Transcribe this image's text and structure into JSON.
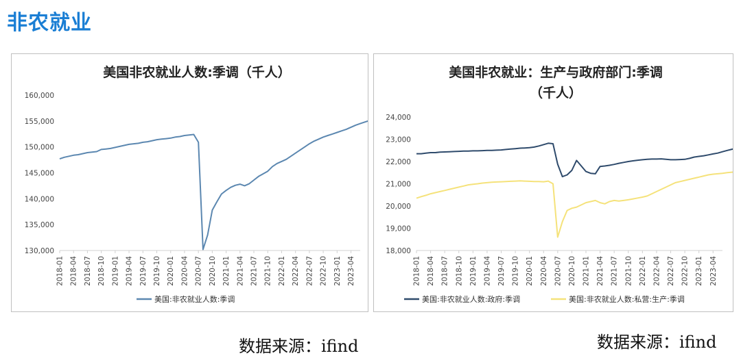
{
  "page_title": "非农就业",
  "source_left": "数据来源：ifind",
  "source_right": "数据来源：ifind",
  "chart_data": [
    {
      "type": "line",
      "title_lines": [
        "美国非农就业人数:季调（千人）"
      ],
      "ylim": [
        130000,
        160000
      ],
      "yticks": [
        130000,
        135000,
        140000,
        145000,
        150000,
        155000,
        160000
      ],
      "ytick_labels": [
        "130,000",
        "135,000",
        "140,000",
        "145,000",
        "150,000",
        "155,000",
        "160,000"
      ],
      "xticks": [
        "2018-01",
        "2018-04",
        "2018-07",
        "2018-10",
        "2019-01",
        "2019-04",
        "2019-07",
        "2019-10",
        "2020-01",
        "2020-04",
        "2020-07",
        "2020-10",
        "2021-01",
        "2021-04",
        "2021-07",
        "2021-10",
        "2022-01",
        "2022-04",
        "2022-07",
        "2022-10",
        "2023-01",
        "2023-04"
      ],
      "x_start": "2018-01",
      "x_end": "2023-06",
      "grid": false,
      "legend_position": "bottom",
      "colors": [
        "#5b87b0"
      ],
      "series": [
        {
          "name": "美国:非农就业人数:季调",
          "values": [
            147700,
            148000,
            148200,
            148400,
            148500,
            148700,
            148900,
            149000,
            149100,
            149500,
            149600,
            149700,
            149900,
            150100,
            150300,
            150500,
            150600,
            150700,
            150900,
            151000,
            151200,
            151400,
            151500,
            151600,
            151700,
            151900,
            152000,
            152200,
            152300,
            152400,
            150900,
            130200,
            133000,
            137800,
            139400,
            140900,
            141600,
            142200,
            142600,
            142800,
            142500,
            142900,
            143600,
            144300,
            144800,
            145300,
            146200,
            146800,
            147200,
            147600,
            148200,
            148800,
            149400,
            150000,
            150600,
            151100,
            151500,
            151900,
            152200,
            152500,
            152800,
            153100,
            153400,
            153800,
            154200,
            154500,
            154800,
            155100,
            155400,
            155600,
            156000,
            156200
          ]
        }
      ]
    },
    {
      "type": "line",
      "title_lines": [
        "美国非农就业：生产与政府部门:季调",
        "（千人）"
      ],
      "ylim": [
        18000,
        24000
      ],
      "yticks": [
        18000,
        19000,
        20000,
        21000,
        22000,
        23000,
        24000
      ],
      "ytick_labels": [
        "18,000",
        "19,000",
        "20,000",
        "21,000",
        "22,000",
        "23,000",
        "24,000"
      ],
      "xticks": [
        "2018-01",
        "2018-04",
        "2018-07",
        "2018-10",
        "2019-01",
        "2019-04",
        "2019-07",
        "2019-10",
        "2020-01",
        "2020-04",
        "2020-07",
        "2020-10",
        "2021-01",
        "2021-04",
        "2021-07",
        "2021-10",
        "2022-01",
        "2022-04",
        "2022-07",
        "2022-10",
        "2023-01",
        "2023-04"
      ],
      "x_start": "2018-01",
      "x_end": "2023-06",
      "grid": false,
      "legend_position": "bottom",
      "colors": [
        "#2e4a6b",
        "#f5e27a"
      ],
      "series": [
        {
          "name": "美国:非农就业人数:政府:季调",
          "values": [
            22350,
            22350,
            22380,
            22400,
            22400,
            22420,
            22430,
            22440,
            22450,
            22460,
            22470,
            22470,
            22480,
            22480,
            22490,
            22500,
            22500,
            22510,
            22520,
            22540,
            22560,
            22580,
            22600,
            22610,
            22620,
            22650,
            22700,
            22760,
            22820,
            22800,
            21880,
            21320,
            21400,
            21600,
            22050,
            21800,
            21550,
            21470,
            21450,
            21780,
            21800,
            21830,
            21870,
            21920,
            21960,
            22000,
            22030,
            22060,
            22080,
            22100,
            22110,
            22110,
            22120,
            22100,
            22080,
            22080,
            22090,
            22100,
            22140,
            22200,
            22230,
            22260,
            22300,
            22340,
            22380,
            22440,
            22500,
            22550,
            22600,
            22640,
            22680,
            22720
          ]
        },
        {
          "name": "美国:非农就业人数:私营:生产:季调",
          "values": [
            20350,
            20420,
            20480,
            20550,
            20600,
            20650,
            20700,
            20750,
            20800,
            20850,
            20900,
            20950,
            20980,
            21000,
            21030,
            21050,
            21070,
            21080,
            21090,
            21100,
            21110,
            21120,
            21130,
            21120,
            21110,
            21100,
            21100,
            21090,
            21120,
            21000,
            18600,
            19300,
            19800,
            19900,
            19950,
            20050,
            20150,
            20200,
            20250,
            20150,
            20100,
            20200,
            20250,
            20220,
            20250,
            20280,
            20320,
            20360,
            20400,
            20450,
            20550,
            20650,
            20750,
            20850,
            20950,
            21050,
            21100,
            21150,
            21200,
            21250,
            21300,
            21350,
            21400,
            21430,
            21450,
            21470,
            21500,
            21520,
            21530,
            21530,
            21550,
            21570
          ]
        }
      ]
    }
  ]
}
